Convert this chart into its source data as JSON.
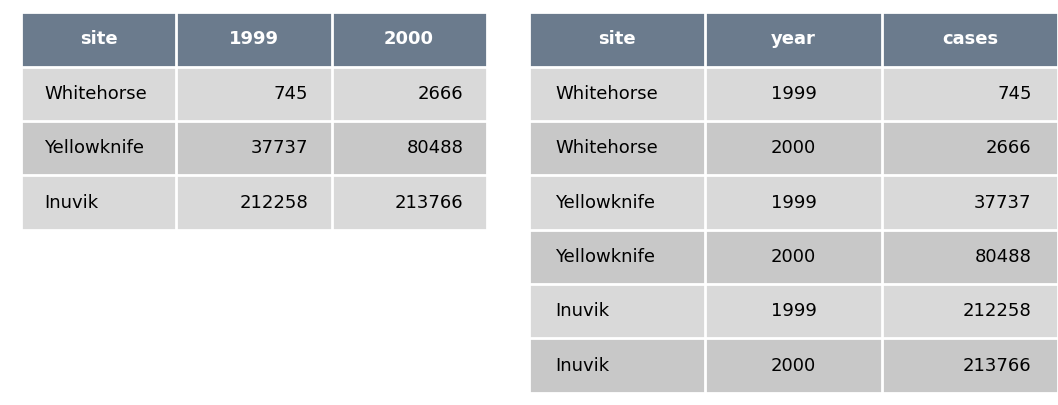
{
  "table1": {
    "headers": [
      "site",
      "1999",
      "2000"
    ],
    "rows": [
      [
        "Whitehorse",
        "745",
        "2666"
      ],
      [
        "Yellowknife",
        "37737",
        "80488"
      ],
      [
        "Inuvik",
        "212258",
        "213766"
      ]
    ],
    "col_aligns": [
      "left",
      "right",
      "right"
    ],
    "header_align": [
      "center",
      "center",
      "center"
    ]
  },
  "table2": {
    "headers": [
      "site",
      "year",
      "cases"
    ],
    "rows": [
      [
        "Whitehorse",
        "1999",
        "745"
      ],
      [
        "Whitehorse",
        "2000",
        "2666"
      ],
      [
        "Yellowknife",
        "1999",
        "37737"
      ],
      [
        "Yellowknife",
        "2000",
        "80488"
      ],
      [
        "Inuvik",
        "1999",
        "212258"
      ],
      [
        "Inuvik",
        "2000",
        "213766"
      ]
    ],
    "col_aligns": [
      "left",
      "center",
      "right"
    ],
    "header_align": [
      "center",
      "center",
      "center"
    ]
  },
  "header_bg": "#6b7b8d",
  "header_fg": "#ffffff",
  "row_bg_light": "#d9d9d9",
  "row_bg_dark": "#c8c8c8",
  "cell_text_color": "#000000",
  "separator_color": "#ffffff",
  "font_size": 13,
  "header_font_size": 13,
  "bg_color": "#ffffff"
}
